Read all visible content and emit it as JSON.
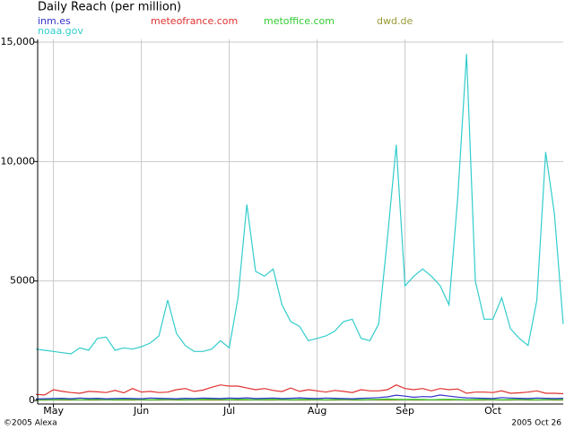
{
  "chart_data": {
    "type": "line",
    "title": "Daily Reach (per million)",
    "credit": "©2005 Alexa",
    "date_stamp": "2005 Oct 26",
    "categories": [
      null,
      null,
      "May",
      null,
      null,
      null,
      null,
      null,
      null,
      null,
      null,
      null,
      "Jun",
      null,
      null,
      null,
      null,
      null,
      null,
      null,
      null,
      null,
      "Jul",
      null,
      null,
      null,
      null,
      null,
      null,
      null,
      null,
      null,
      "Aug",
      null,
      null,
      null,
      null,
      null,
      null,
      null,
      null,
      null,
      "Sep",
      null,
      null,
      null,
      null,
      null,
      null,
      null,
      null,
      null,
      "Oct",
      null,
      null,
      null,
      null,
      null,
      null,
      null,
      null
    ],
    "ylim": [
      0,
      15000
    ],
    "yticks": [
      0,
      5000,
      {
        "value": 10000,
        "label": "10,000"
      },
      {
        "value": 15000,
        "label": "15,000"
      }
    ],
    "grid": true,
    "legend": "top",
    "series": [
      {
        "name": "inm.es",
        "color": "#3333cc",
        "values": [
          60,
          70,
          80,
          90,
          70,
          100,
          80,
          90,
          70,
          80,
          90,
          80,
          70,
          100,
          90,
          80,
          70,
          90,
          80,
          100,
          90,
          80,
          100,
          90,
          110,
          80,
          90,
          100,
          80,
          90,
          110,
          90,
          80,
          100,
          90,
          80,
          70,
          90,
          100,
          120,
          150,
          220,
          180,
          130,
          160,
          150,
          230,
          180,
          140,
          110,
          100,
          90,
          80,
          120,
          100,
          90,
          80,
          100,
          90,
          80,
          90
        ]
      },
      {
        "name": "meteofrance.com",
        "color": "#e03030",
        "values": [
          250,
          230,
          450,
          380,
          330,
          300,
          380,
          360,
          330,
          420,
          320,
          500,
          350,
          380,
          330,
          350,
          450,
          500,
          380,
          430,
          550,
          650,
          600,
          600,
          520,
          450,
          500,
          420,
          370,
          520,
          380,
          450,
          400,
          350,
          420,
          380,
          330,
          450,
          400,
          400,
          450,
          650,
          500,
          450,
          500,
          400,
          500,
          450,
          480,
          300,
          350,
          350,
          330,
          400,
          300,
          320,
          350,
          400,
          300,
          300,
          280
        ]
      },
      {
        "name": "metoffice.com",
        "color": "#33cc33",
        "values": [
          30,
          40,
          30,
          50,
          40,
          30,
          40,
          50,
          40,
          30,
          40,
          50,
          40,
          30,
          40,
          50,
          40,
          30,
          40,
          50,
          60,
          50,
          40,
          50,
          40,
          30,
          40,
          50,
          40,
          30,
          40,
          50,
          40,
          30,
          40,
          50,
          40,
          30,
          40,
          50,
          60,
          50,
          40,
          50,
          40,
          30,
          40,
          50,
          40,
          30,
          40,
          50,
          40,
          30,
          40,
          50,
          40,
          30,
          40,
          50,
          40
        ]
      },
      {
        "name": "dwd.de",
        "color": "#999933",
        "values": [
          20,
          20,
          30,
          20,
          20,
          30,
          20,
          20,
          30,
          20,
          20,
          20,
          30,
          20,
          20,
          30,
          20,
          20,
          30,
          20,
          20,
          20,
          30,
          20,
          20,
          30,
          20,
          20,
          30,
          20,
          20,
          20,
          30,
          20,
          20,
          30,
          20,
          20,
          30,
          20,
          20,
          20,
          30,
          20,
          20,
          30,
          20,
          20,
          30,
          20,
          20,
          20,
          30,
          20,
          20,
          30,
          20,
          20,
          30,
          20,
          20
        ]
      },
      {
        "name": "noaa.gov",
        "color": "#33cccc",
        "values": [
          2150,
          2100,
          2050,
          2000,
          1950,
          2200,
          2100,
          2600,
          2650,
          2100,
          2200,
          2150,
          2250,
          2400,
          2700,
          4200,
          2800,
          2300,
          2050,
          2050,
          2150,
          2500,
          2200,
          4300,
          8200,
          5400,
          5200,
          5500,
          4000,
          3300,
          3100,
          2500,
          2600,
          2700,
          2900,
          3300,
          3400,
          2600,
          2500,
          3200,
          6800,
          10700,
          4800,
          5200,
          5500,
          5200,
          4800,
          4000,
          8500,
          14500,
          5000,
          3400,
          3400,
          4300,
          3000,
          2600,
          2300,
          4200,
          10400,
          7800,
          3200
        ]
      }
    ]
  }
}
